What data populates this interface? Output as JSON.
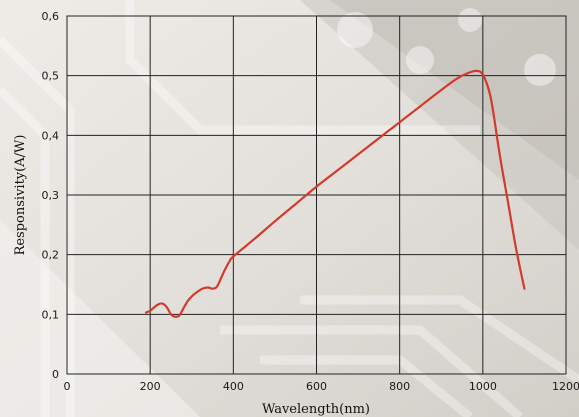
{
  "chart_data": {
    "type": "line",
    "title": "",
    "xlabel": "Wavelength(nm)",
    "ylabel": "Responsivity(A/W)",
    "xlim": [
      0,
      1200
    ],
    "ylim": [
      0,
      0.6
    ],
    "grid": true,
    "legend": "none",
    "x_ticks": [
      "0",
      "200",
      "400",
      "600",
      "800",
      "1000",
      "1200"
    ],
    "y_ticks": [
      "0",
      "0,1",
      "0,2",
      "0,3",
      "0,4",
      "0,5",
      "0,6"
    ],
    "x_tick_values": [
      0,
      200,
      400,
      600,
      800,
      1000,
      1200
    ],
    "y_tick_values": [
      0,
      0.1,
      0.2,
      0.3,
      0.4,
      0.5,
      0.6
    ],
    "series": [
      {
        "color": "#d23b2c",
        "x": [
          190,
          200,
          210,
          220,
          230,
          240,
          250,
          260,
          270,
          280,
          290,
          300,
          310,
          320,
          330,
          340,
          350,
          360,
          370,
          380,
          390,
          400,
          450,
          500,
          550,
          600,
          650,
          700,
          750,
          800,
          850,
          900,
          940,
          960,
          975,
          985,
          995,
          1005,
          1020,
          1040,
          1060,
          1080,
          1100
        ],
        "y": [
          0.103,
          0.106,
          0.112,
          0.117,
          0.118,
          0.112,
          0.1,
          0.096,
          0.098,
          0.11,
          0.122,
          0.13,
          0.136,
          0.141,
          0.144,
          0.145,
          0.143,
          0.146,
          0.16,
          0.175,
          0.188,
          0.197,
          0.226,
          0.256,
          0.285,
          0.314,
          0.341,
          0.368,
          0.395,
          0.422,
          0.449,
          0.476,
          0.496,
          0.503,
          0.507,
          0.508,
          0.506,
          0.495,
          0.46,
          0.37,
          0.29,
          0.21,
          0.143
        ]
      }
    ]
  }
}
